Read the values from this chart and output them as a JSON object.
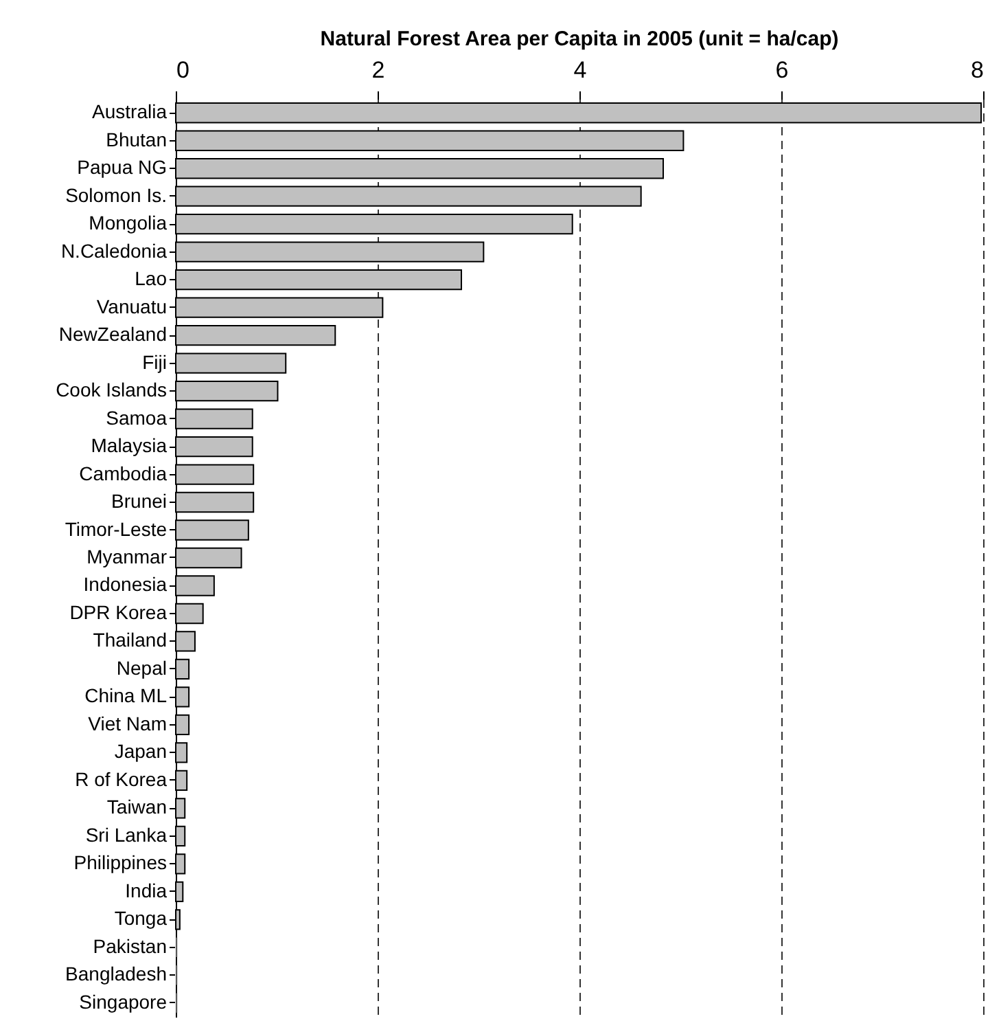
{
  "chart_data": {
    "type": "bar",
    "orientation": "horizontal",
    "title": "Natural Forest Area per Capita in 2005 (unit = ha/cap)",
    "categories": [
      "Australia",
      "Bhutan",
      "Papua NG",
      "Solomon Is.",
      "Mongolia",
      "N.Caledonia",
      "Lao",
      "Vanuatu",
      "NewZealand",
      "Fiji",
      "Cook Islands",
      "Samoa",
      "Malaysia",
      "Cambodia",
      "Brunei",
      "Timor-Leste",
      "Myanmar",
      "Indonesia",
      "DPR Korea",
      "Thailand",
      "Nepal",
      "China ML",
      "Viet Nam",
      "Japan",
      "R of Korea",
      "Taiwan",
      "Sri Lanka",
      "Philippines",
      "India",
      "Tonga",
      "Pakistan",
      "Bangladesh",
      "Singapore"
    ],
    "values": [
      7.98,
      5.03,
      4.83,
      4.61,
      3.93,
      3.05,
      2.83,
      2.05,
      1.58,
      1.09,
      1.01,
      0.76,
      0.76,
      0.77,
      0.77,
      0.72,
      0.65,
      0.38,
      0.27,
      0.19,
      0.13,
      0.13,
      0.13,
      0.11,
      0.11,
      0.09,
      0.09,
      0.09,
      0.07,
      0.04,
      0,
      0,
      0
    ],
    "color": "#c0c0c0",
    "xlim": [
      0,
      8
    ],
    "xticks": [
      0,
      2,
      4,
      6,
      8
    ],
    "grid": "x"
  }
}
